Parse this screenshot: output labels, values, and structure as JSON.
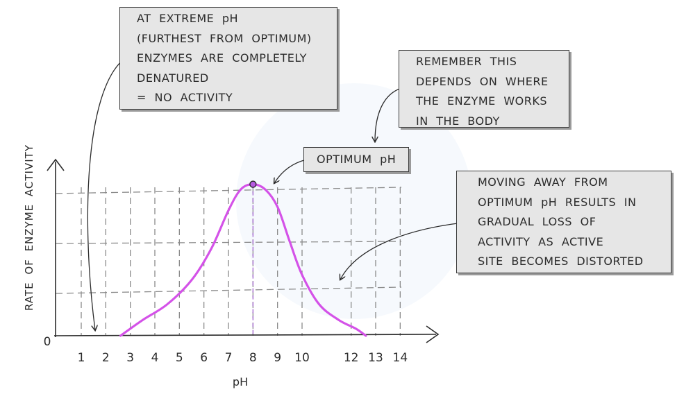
{
  "chart_data": {
    "type": "line",
    "xlabel": "pH",
    "ylabel": "RATE OF ENZYME ACTIVITY",
    "origin_label": "0",
    "x_ticks": [
      1,
      2,
      3,
      4,
      5,
      6,
      7,
      8,
      9,
      10,
      12,
      13,
      14
    ],
    "xlim": [
      0,
      14
    ],
    "ylim": [
      0,
      1
    ],
    "grid": true,
    "series": [
      {
        "color": "#d452e8",
        "points": [
          [
            2.6,
            0
          ],
          [
            3.5,
            0.09
          ],
          [
            4.5,
            0.18
          ],
          [
            5.5,
            0.32
          ],
          [
            6.3,
            0.5
          ],
          [
            7.0,
            0.72
          ],
          [
            7.5,
            0.84
          ],
          [
            8.0,
            0.87
          ],
          [
            8.5,
            0.84
          ],
          [
            9.0,
            0.74
          ],
          [
            9.5,
            0.54
          ],
          [
            10.0,
            0.35
          ],
          [
            10.7,
            0.18
          ],
          [
            11.5,
            0.09
          ],
          [
            12.2,
            0.04
          ],
          [
            12.6,
            0
          ]
        ]
      }
    ],
    "optimum": {
      "x": 8.0,
      "y": 0.87
    }
  },
  "annotations": {
    "extreme": {
      "lines": [
        "AT EXTREME pH",
        "(FURTHEST FROM OPTIMUM)",
        "ENZYMES ARE COMPLETELY",
        "DENATURED",
        "= NO ACTIVITY"
      ]
    },
    "remember": {
      "lines": [
        "REMEMBER THIS",
        "DEPENDS ON WHERE",
        "THE ENZYME WORKS",
        "IN THE BODY"
      ]
    },
    "optimum": {
      "label": "OPTIMUM pH"
    },
    "moving": {
      "lines": [
        "MOVING AWAY FROM",
        "OPTIMUM pH RESULTS IN",
        "GRADUAL LOSS OF",
        "ACTIVITY AS ACTIVE",
        "SITE BECOMES DISTORTED"
      ]
    }
  },
  "colors": {
    "curve": "#d452e8",
    "axis": "#2b2b2b",
    "grid": "#8a8a8a",
    "callout_bg": "#e6e6e6"
  }
}
